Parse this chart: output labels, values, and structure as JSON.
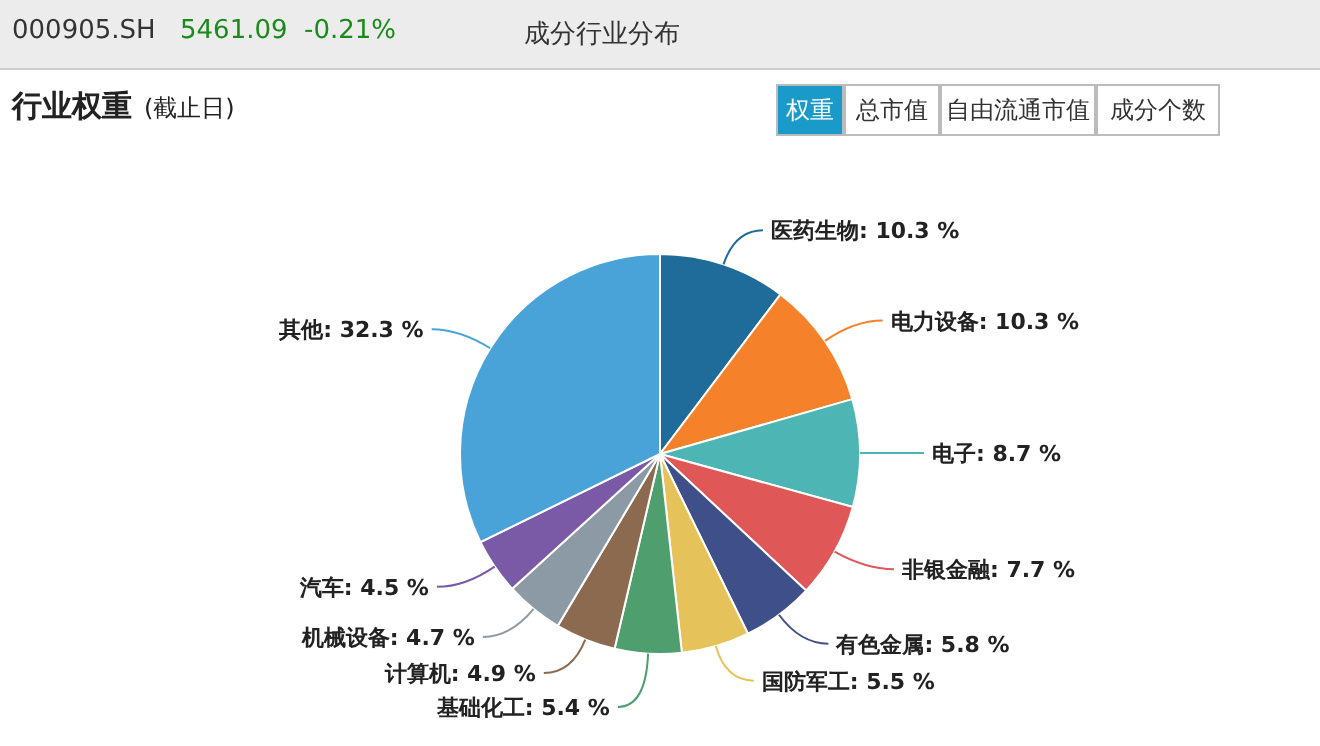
{
  "chart_data": {
    "type": "pie",
    "title": "行业权重",
    "subtitle": "(截止日)",
    "annotations": [
      "000905.SH",
      "5461.09",
      "-0.21%",
      "成分行业分布",
      "权重",
      "总市值",
      "自由流通市值",
      "成分个数"
    ],
    "categories": [
      "医药生物",
      "电力设备",
      "电子",
      "非银金融",
      "有色金属",
      "国防军工",
      "基础化工",
      "计算机",
      "机械设备",
      "汽车",
      "其他"
    ],
    "values": [
      10.3,
      10.3,
      8.7,
      7.7,
      5.8,
      5.5,
      5.4,
      4.9,
      4.7,
      4.5,
      32.3
    ],
    "value_labels": [
      "10.3 %",
      "10.3 %",
      "8.7 %",
      "7.7 %",
      "5.8 %",
      "5.5 %",
      "5.4 %",
      "4.9 %",
      "4.7 %",
      "4.5 %",
      "32.3 %"
    ],
    "colors": [
      "#1f6b9a",
      "#f5822a",
      "#4db6b5",
      "#e05757",
      "#3f4f8a",
      "#e5c35a",
      "#4f9e6e",
      "#8b6a4f",
      "#8c9aa6",
      "#7a5aa6",
      "#4aa3d8"
    ]
  }
}
